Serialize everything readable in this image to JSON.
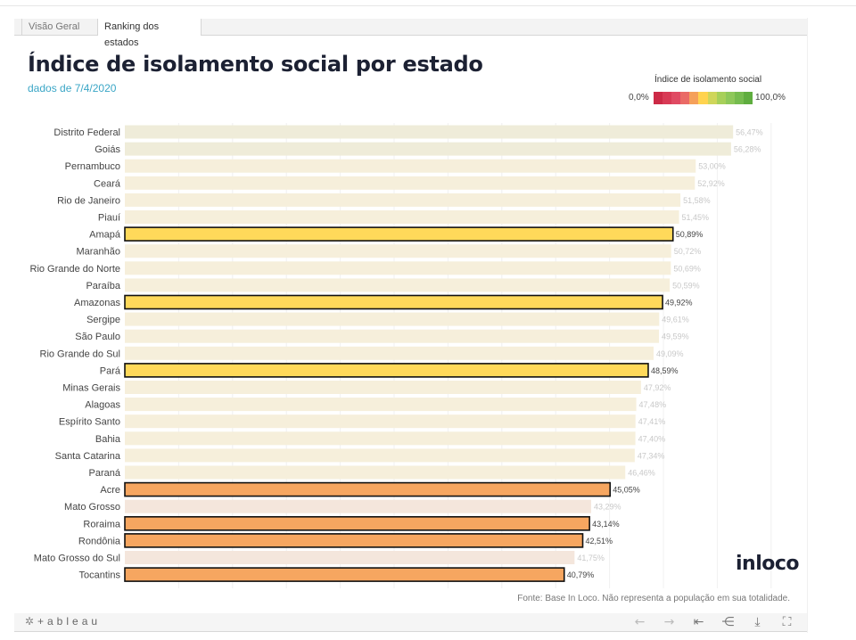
{
  "tabs": [
    {
      "label": "Visão Geral",
      "active": false
    },
    {
      "label": "Ranking dos estados",
      "active": true
    }
  ],
  "header": {
    "title": "Índice de isolamento social por estado",
    "subtitle": "dados de 7/4/2020"
  },
  "legend": {
    "title": "Índice de isolamento social",
    "min_label": "0,0%",
    "max_label": "100,0%",
    "colors": [
      "#cc2a46",
      "#d83a55",
      "#e04a63",
      "#ea6a66",
      "#f5a05a",
      "#ffd34f",
      "#cfd65a",
      "#a7d05a",
      "#8ec85a",
      "#76bc4f",
      "#5fad3f"
    ]
  },
  "chart_data": {
    "type": "bar",
    "orientation": "horizontal",
    "title": "Índice de isolamento social por estado",
    "subtitle": "dados de 7/4/2020",
    "xlabel": "",
    "ylabel": "",
    "xlim": [
      0,
      60
    ],
    "grid": true,
    "grid_interval": 5,
    "value_format": "percent-comma",
    "categories": [
      "Distrito Federal",
      "Goiás",
      "Pernambuco",
      "Ceará",
      "Rio de Janeiro",
      "Piauí",
      "Amapá",
      "Maranhão",
      "Rio Grande do Norte",
      "Paraíba",
      "Amazonas",
      "Sergipe",
      "São Paulo",
      "Rio Grande do Sul",
      "Pará",
      "Minas Gerais",
      "Alagoas",
      "Espírito Santo",
      "Bahia",
      "Santa Catarina",
      "Paraná",
      "Acre",
      "Mato Grosso",
      "Roraima",
      "Rondônia",
      "Mato Grosso do Sul",
      "Tocantins"
    ],
    "values": [
      56.47,
      56.28,
      53.0,
      52.92,
      51.58,
      51.45,
      50.89,
      50.72,
      50.69,
      50.59,
      49.92,
      49.61,
      49.59,
      49.09,
      48.59,
      47.92,
      47.48,
      47.41,
      47.4,
      47.34,
      46.46,
      45.05,
      43.29,
      43.14,
      42.51,
      41.75,
      40.79
    ],
    "labels": [
      "56,47%",
      "56,28%",
      "53,00%",
      "52,92%",
      "51,58%",
      "51,45%",
      "50,89%",
      "50,72%",
      "50,69%",
      "50,59%",
      "49,92%",
      "49,61%",
      "49,59%",
      "49,09%",
      "48,59%",
      "47,92%",
      "47,48%",
      "47,41%",
      "47,40%",
      "47,34%",
      "46,46%",
      "45,05%",
      "43,29%",
      "43,14%",
      "42,51%",
      "41,75%",
      "40,79%"
    ],
    "highlighted": [
      "Amapá",
      "Amazonas",
      "Pará",
      "Acre",
      "Roraima",
      "Rondônia",
      "Tocantins"
    ],
    "colors": {
      "highlight_yellow": "#ffd95a",
      "highlight_orange": "#f6a660",
      "faded_green": "#efecd9",
      "faded_yellow": "#f6efdb",
      "faded_orange": "#f4e6dc",
      "highlight_border": "#111111"
    },
    "bar_color_group": [
      "green",
      "green",
      "yellow",
      "yellow",
      "yellow",
      "yellow",
      "yellow",
      "yellow",
      "yellow",
      "yellow",
      "yellow",
      "yellow",
      "yellow",
      "yellow",
      "yellow",
      "yellow",
      "yellow",
      "yellow",
      "yellow",
      "yellow",
      "yellow",
      "orange",
      "orange",
      "orange",
      "orange",
      "orange",
      "orange"
    ]
  },
  "footer": {
    "source": "Fonte: Base In Loco. Não representa a população em sua totalidade.",
    "logo": "inloco"
  },
  "toolbar": {
    "brand": "+ableau",
    "icons": [
      {
        "name": "undo-icon",
        "glyph": "←",
        "enabled": false
      },
      {
        "name": "redo-icon",
        "glyph": "→",
        "enabled": false
      },
      {
        "name": "revert-icon",
        "glyph": "⇤",
        "enabled": true
      },
      {
        "name": "share-icon",
        "glyph": "⋲",
        "enabled": true
      },
      {
        "name": "download-icon",
        "glyph": "⤓",
        "enabled": true
      },
      {
        "name": "fullscreen-icon",
        "glyph": "⛶",
        "enabled": true
      }
    ]
  }
}
